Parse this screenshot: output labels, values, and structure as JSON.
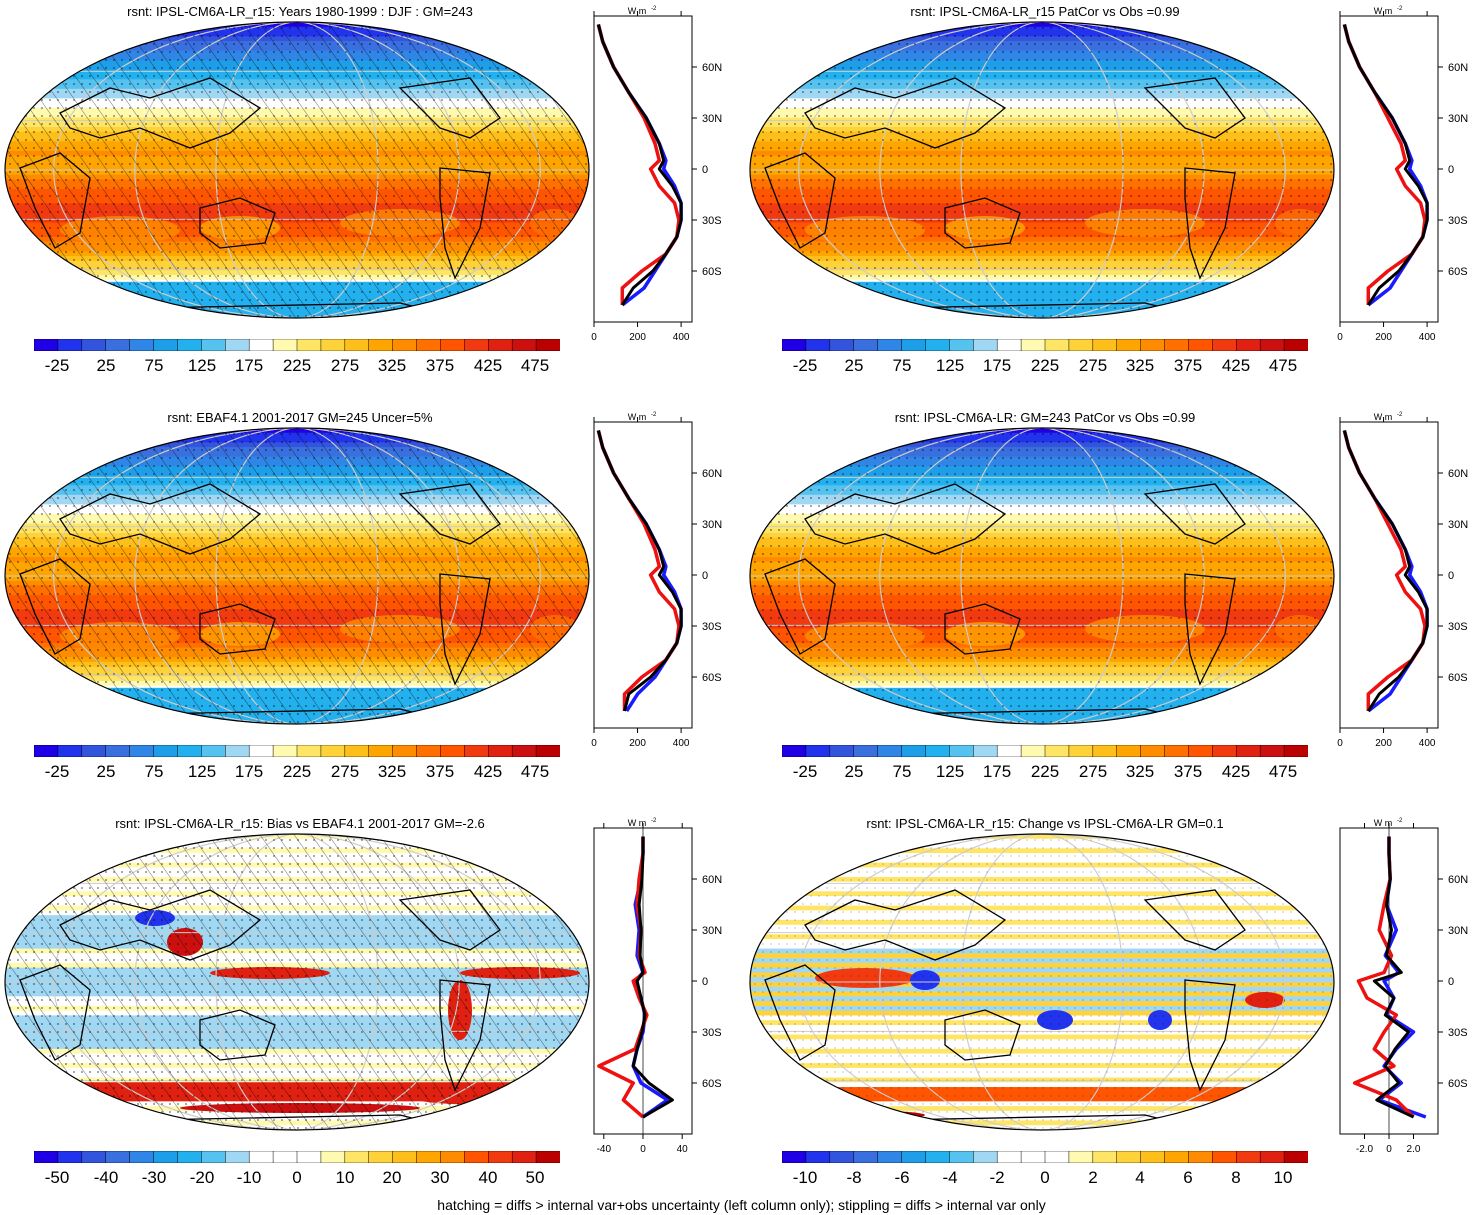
{
  "footer": "hatching = diffs > internal var+obs uncertainty (left column only); stippling = diffs > internal var only",
  "units": "W m",
  "units_sup": "-2",
  "lat_labels": [
    "60N",
    "30N",
    "0",
    "30S",
    "60S"
  ],
  "colors": {
    "obs_line": "#ee1111",
    "model_line": "#1a1aff",
    "ref_line": "#000000",
    "land": "#000000"
  },
  "chart_data": [
    {
      "type": "map-with-zonal-profile",
      "title": "rsnt: IPSL-CM6A-LR_r15: Years 1980-1999 : DJF : GM=243",
      "colorbar_ticks": [
        "-25",
        "25",
        "75",
        "125",
        "175",
        "225",
        "275",
        "325",
        "375",
        "425",
        "475"
      ],
      "colorbar_range": [
        -50,
        500
      ],
      "profile_xticks": [
        "0",
        "200",
        "400"
      ],
      "profile_xlim": [
        0,
        450
      ],
      "profile_lat": [
        85,
        75,
        60,
        45,
        30,
        15,
        5,
        0,
        -10,
        -20,
        -30,
        -40,
        -50,
        -60,
        -70,
        -80
      ],
      "profile_series": [
        {
          "name": "model",
          "values": [
            20,
            40,
            90,
            160,
            240,
            300,
            330,
            320,
            370,
            400,
            400,
            380,
            330,
            280,
            230,
            130
          ]
        },
        {
          "name": "obs",
          "values": [
            20,
            40,
            90,
            160,
            230,
            280,
            300,
            260,
            300,
            370,
            390,
            380,
            330,
            220,
            130,
            130
          ]
        },
        {
          "name": "ref",
          "values": [
            20,
            40,
            90,
            160,
            240,
            300,
            320,
            300,
            360,
            400,
            400,
            380,
            330,
            270,
            180,
            130
          ]
        }
      ]
    },
    {
      "type": "map-with-zonal-profile",
      "title": "rsnt: IPSL-CM6A-LR_r15 PatCor vs Obs =0.99",
      "colorbar_ticks": [
        "-25",
        "25",
        "75",
        "125",
        "175",
        "225",
        "275",
        "325",
        "375",
        "425",
        "475"
      ],
      "colorbar_range": [
        -50,
        500
      ],
      "profile_xticks": [
        "0",
        "200",
        "400"
      ],
      "profile_xlim": [
        0,
        450
      ],
      "profile_lat": [
        85,
        75,
        60,
        45,
        30,
        15,
        5,
        0,
        -10,
        -20,
        -30,
        -40,
        -50,
        -60,
        -70,
        -80
      ],
      "profile_series": [
        {
          "name": "model",
          "values": [
            20,
            40,
            90,
            160,
            240,
            300,
            330,
            320,
            370,
            400,
            400,
            380,
            330,
            280,
            230,
            130
          ]
        },
        {
          "name": "obs",
          "values": [
            20,
            40,
            90,
            160,
            220,
            280,
            300,
            260,
            300,
            370,
            390,
            380,
            330,
            220,
            130,
            130
          ]
        },
        {
          "name": "ref",
          "values": [
            20,
            40,
            90,
            160,
            240,
            300,
            320,
            300,
            360,
            400,
            400,
            380,
            330,
            270,
            180,
            130
          ]
        }
      ]
    },
    {
      "type": "map-with-zonal-profile",
      "title": "rsnt: EBAF4.1 2001-2017 GM=245 Uncer=5%",
      "colorbar_ticks": [
        "-25",
        "25",
        "75",
        "125",
        "175",
        "225",
        "275",
        "325",
        "375",
        "425",
        "475"
      ],
      "colorbar_range": [
        -50,
        500
      ],
      "profile_xticks": [
        "0",
        "200",
        "400"
      ],
      "profile_xlim": [
        0,
        450
      ],
      "profile_lat": [
        85,
        75,
        60,
        45,
        30,
        15,
        5,
        0,
        -10,
        -20,
        -30,
        -40,
        -50,
        -60,
        -70,
        -80
      ],
      "profile_series": [
        {
          "name": "model",
          "values": [
            20,
            40,
            90,
            160,
            240,
            300,
            330,
            320,
            370,
            400,
            400,
            380,
            330,
            280,
            200,
            150
          ]
        },
        {
          "name": "obs",
          "values": [
            20,
            40,
            90,
            160,
            230,
            280,
            300,
            260,
            300,
            370,
            390,
            380,
            330,
            220,
            140,
            140
          ]
        },
        {
          "name": "ref",
          "values": [
            20,
            40,
            90,
            160,
            240,
            300,
            320,
            300,
            360,
            400,
            400,
            380,
            330,
            260,
            160,
            140
          ]
        }
      ]
    },
    {
      "type": "map-with-zonal-profile",
      "title": "rsnt: IPSL-CM6A-LR: GM=243 PatCor vs Obs =0.99",
      "colorbar_ticks": [
        "-25",
        "25",
        "75",
        "125",
        "175",
        "225",
        "275",
        "325",
        "375",
        "425",
        "475"
      ],
      "colorbar_range": [
        -50,
        500
      ],
      "profile_xticks": [
        "0",
        "200",
        "400"
      ],
      "profile_xlim": [
        0,
        450
      ],
      "profile_lat": [
        85,
        75,
        60,
        45,
        30,
        15,
        5,
        0,
        -10,
        -20,
        -30,
        -40,
        -50,
        -60,
        -70,
        -80
      ],
      "profile_series": [
        {
          "name": "model",
          "values": [
            20,
            40,
            90,
            160,
            240,
            300,
            330,
            320,
            370,
            400,
            400,
            380,
            330,
            280,
            230,
            130
          ]
        },
        {
          "name": "obs",
          "values": [
            20,
            40,
            90,
            160,
            220,
            280,
            300,
            260,
            300,
            370,
            390,
            380,
            330,
            220,
            130,
            130
          ]
        },
        {
          "name": "ref",
          "values": [
            20,
            40,
            90,
            160,
            240,
            300,
            320,
            300,
            360,
            400,
            400,
            380,
            330,
            270,
            180,
            130
          ]
        }
      ]
    },
    {
      "type": "map-with-zonal-profile",
      "title": "rsnt: IPSL-CM6A-LR_r15: Bias vs EBAF4.1 2001-2017 GM=-2.6",
      "colorbar_ticks": [
        "-50",
        "-40",
        "-30",
        "-20",
        "-10",
        "0",
        "10",
        "20",
        "30",
        "40",
        "50"
      ],
      "colorbar_range": [
        -55,
        55
      ],
      "profile_xticks": [
        "-40",
        "0",
        "40"
      ],
      "profile_xlim": [
        -50,
        50
      ],
      "profile_lat": [
        85,
        75,
        60,
        45,
        30,
        15,
        5,
        0,
        -10,
        -20,
        -30,
        -40,
        -50,
        -60,
        -70,
        -80
      ],
      "profile_series": [
        {
          "name": "model",
          "values": [
            0,
            0,
            -2,
            -8,
            -4,
            -6,
            0,
            -8,
            -2,
            2,
            0,
            -6,
            -10,
            -2,
            25,
            0
          ]
        },
        {
          "name": "obs",
          "values": [
            0,
            0,
            -4,
            -6,
            -2,
            -4,
            2,
            -10,
            -4,
            4,
            -2,
            -8,
            -45,
            -10,
            -20,
            0
          ]
        },
        {
          "name": "ref",
          "values": [
            0,
            0,
            -1,
            -4,
            -2,
            -3,
            0,
            -6,
            -2,
            2,
            -1,
            -6,
            -10,
            6,
            30,
            0
          ]
        }
      ]
    },
    {
      "type": "map-with-zonal-profile",
      "title": "rsnt: IPSL-CM6A-LR_r15: Change vs IPSL-CM6A-LR GM=0.1",
      "colorbar_ticks": [
        "-10",
        "-8",
        "-6",
        "-4",
        "-2",
        "0",
        "2",
        "4",
        "6",
        "8",
        "10"
      ],
      "colorbar_range": [
        -11,
        11
      ],
      "profile_xticks": [
        "-2.0",
        "0",
        "2.0"
      ],
      "profile_xlim": [
        -4,
        4
      ],
      "profile_lat": [
        85,
        75,
        60,
        45,
        30,
        15,
        5,
        0,
        -10,
        -20,
        -30,
        -40,
        -50,
        -60,
        -70,
        -80
      ],
      "profile_series": [
        {
          "name": "model",
          "values": [
            0,
            0,
            0.1,
            -0.2,
            0.6,
            -0.3,
            0.8,
            -0.4,
            0.4,
            -0.2,
            2.0,
            0.6,
            -0.4,
            1.0,
            -0.8,
            3.0
          ]
        },
        {
          "name": "obs",
          "values": [
            0,
            0,
            0.1,
            -0.4,
            -0.8,
            0.2,
            -0.4,
            -2.5,
            -1.8,
            0.6,
            -0.4,
            -1.2,
            0.4,
            -2.8,
            0.6,
            2.0
          ]
        },
        {
          "name": "ref",
          "values": [
            0,
            0,
            0.1,
            -0.2,
            0.2,
            -0.2,
            1.0,
            -1.2,
            0.4,
            -0.3,
            1.6,
            0.5,
            -0.3,
            0.8,
            -1.0,
            2.0
          ]
        }
      ]
    }
  ]
}
